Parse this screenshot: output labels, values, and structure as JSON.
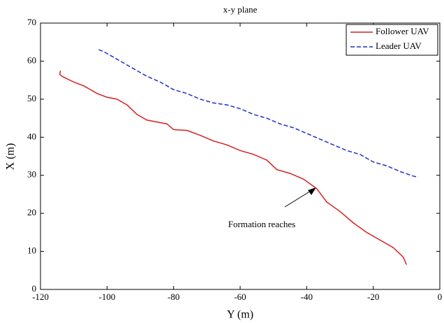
{
  "chart_data": {
    "type": "line",
    "title": "x-y plane",
    "x_label": "Y (m)",
    "y_label": "X (m)",
    "annotation": "Formation reaches",
    "xlim": [
      -120,
      0
    ],
    "xticks": [
      -120,
      -100,
      -80,
      -60,
      -40,
      -20,
      0
    ],
    "ylim": [
      0,
      70
    ],
    "yticks": [
      0,
      10,
      20,
      30,
      40,
      50,
      60,
      70
    ],
    "grid": false,
    "legend": "northeast",
    "series": [
      {
        "name": "Follower UAV",
        "color": "#d62020",
        "dash": "solid",
        "x": [
          -114,
          -114.2,
          -113.5,
          -110,
          -107,
          -103,
          -100,
          -97,
          -94,
          -91,
          -88,
          -85,
          -82,
          -80,
          -76,
          -72,
          -68,
          -64,
          -60,
          -56,
          -52,
          -49,
          -45,
          -41,
          -37,
          -34,
          -30,
          -26,
          -22,
          -18,
          -14,
          -11,
          -10
        ],
        "values": [
          57.5,
          56.5,
          56,
          54.5,
          53.5,
          51.5,
          50.5,
          50,
          48.5,
          46,
          44.5,
          44,
          43.5,
          42,
          41.8,
          40.5,
          39,
          38,
          36.5,
          35.5,
          34,
          31.5,
          30.5,
          29,
          26.5,
          23,
          20.5,
          17.5,
          15,
          13,
          11,
          8.5,
          6.5
        ]
      },
      {
        "name": "Leader UAV",
        "color": "#2030c8",
        "dash": "dashed",
        "x": [
          -102.5,
          -101,
          -98,
          -95,
          -92,
          -88,
          -84,
          -80,
          -76,
          -72,
          -68,
          -64,
          -60,
          -56,
          -52,
          -48,
          -44,
          -40,
          -36,
          -32,
          -28,
          -24,
          -20,
          -16,
          -12,
          -8,
          -6.5
        ],
        "values": [
          63,
          62.5,
          61,
          59.5,
          58,
          56,
          54.5,
          52.5,
          51.5,
          50,
          49,
          48.5,
          47.5,
          46,
          45,
          43.5,
          42.5,
          41,
          39.5,
          38,
          36.5,
          35.5,
          33.5,
          32.5,
          31,
          29.8,
          29.5
        ]
      }
    ]
  }
}
